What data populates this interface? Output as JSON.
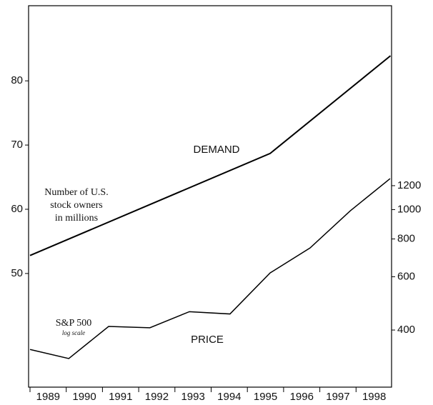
{
  "chart_data": {
    "type": "line",
    "annotations": [
      "DEMAND",
      "PRICE",
      "Number of U.S.",
      "stock owners",
      "in millions",
      "S&P 500",
      "log scale"
    ],
    "xlim": [
      1989,
      1999
    ],
    "xticks": [
      1989,
      1990,
      1991,
      1992,
      1993,
      1994,
      1995,
      1996,
      1997,
      1998
    ],
    "ylim": [
      32.3,
      91.7
    ],
    "yticks": [
      50,
      60,
      70,
      80
    ],
    "y2lim": [
      259,
      4720
    ],
    "y2ticks": [
      400,
      600,
      800,
      1000,
      1200
    ],
    "y2log": true,
    "series": [
      {
        "name": "DEMAND",
        "color": "#000000",
        "x": [
          1989,
          1995.63,
          1998.95
        ],
        "values": [
          52.8,
          68.7,
          83.9
        ]
      },
      {
        "name": "PRICE",
        "color": "#000000",
        "axis": "y2",
        "x": [
          1989,
          1990.07,
          1991.17,
          1992.31,
          1993.4,
          1994.52,
          1995.63,
          1996.73,
          1997.84,
          1998.94
        ],
        "values": [
          345,
          322,
          411,
          407,
          460,
          452,
          618,
          747,
          991,
          1266
        ]
      }
    ]
  }
}
